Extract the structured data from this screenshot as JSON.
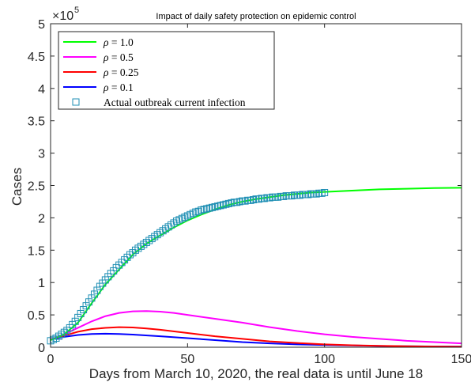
{
  "chart_data": {
    "type": "line",
    "title": "Impact of daily safety protection on epidemic control",
    "xlabel": "Days from March 10, 2020, the real data is until June 18",
    "ylabel": "Cases",
    "y_multiplier_label": "×10",
    "y_multiplier_exponent": "5",
    "xlim": [
      0,
      150
    ],
    "ylim": [
      0,
      5
    ],
    "x_ticks": [
      "0",
      "50",
      "100",
      "150"
    ],
    "y_ticks": [
      "0",
      "0.5",
      "1",
      "1.5",
      "2",
      "2.5",
      "3",
      "3.5",
      "4",
      "4.5",
      "5"
    ],
    "grid": false,
    "legend_position": "top-left",
    "legend": [
      {
        "symbol": "ρ",
        "eq": " = 1.0",
        "color": "#00ff00",
        "marker": "line"
      },
      {
        "symbol": "ρ",
        "eq": " = 0.5",
        "color": "#ff00ff",
        "marker": "line"
      },
      {
        "symbol": "ρ",
        "eq": " = 0.25",
        "color": "#ff0000",
        "marker": "line"
      },
      {
        "symbol": "ρ",
        "eq": " = 0.1",
        "color": "#0000ff",
        "marker": "line"
      },
      {
        "symbol": "",
        "eq": "Actual outbreak current infection",
        "color": "#1f8fb4",
        "marker": "square"
      }
    ],
    "series": [
      {
        "name": "ρ = 1.0",
        "color": "#00ff00",
        "x": [
          0,
          5,
          10,
          15,
          20,
          25,
          30,
          35,
          40,
          45,
          50,
          55,
          60,
          65,
          70,
          75,
          80,
          85,
          90,
          95,
          100,
          110,
          120,
          130,
          140,
          150
        ],
        "y": [
          0.11,
          0.2,
          0.38,
          0.68,
          0.97,
          1.2,
          1.43,
          1.6,
          1.73,
          1.85,
          1.96,
          2.05,
          2.13,
          2.2,
          2.25,
          2.29,
          2.32,
          2.35,
          2.37,
          2.39,
          2.4,
          2.42,
          2.44,
          2.45,
          2.46,
          2.465
        ]
      },
      {
        "name": "ρ = 0.5",
        "color": "#ff00ff",
        "x": [
          0,
          5,
          10,
          15,
          20,
          25,
          30,
          35,
          40,
          45,
          50,
          60,
          70,
          80,
          90,
          100,
          110,
          120,
          130,
          140,
          150
        ],
        "y": [
          0.12,
          0.2,
          0.3,
          0.4,
          0.48,
          0.53,
          0.555,
          0.56,
          0.55,
          0.53,
          0.5,
          0.44,
          0.38,
          0.31,
          0.25,
          0.2,
          0.16,
          0.13,
          0.1,
          0.08,
          0.06
        ]
      },
      {
        "name": "ρ = 0.25",
        "color": "#ff0000",
        "x": [
          0,
          5,
          10,
          15,
          20,
          25,
          30,
          35,
          40,
          50,
          60,
          70,
          80,
          90,
          100,
          110,
          120,
          130,
          140,
          150
        ],
        "y": [
          0.12,
          0.18,
          0.24,
          0.28,
          0.3,
          0.31,
          0.305,
          0.29,
          0.27,
          0.22,
          0.17,
          0.13,
          0.09,
          0.065,
          0.045,
          0.03,
          0.022,
          0.015,
          0.01,
          0.007
        ]
      },
      {
        "name": "ρ = 0.1",
        "color": "#0000ff",
        "x": [
          0,
          5,
          10,
          15,
          20,
          25,
          30,
          40,
          50,
          60,
          70,
          80,
          90,
          100,
          110,
          120,
          130,
          140,
          150
        ],
        "y": [
          0.12,
          0.16,
          0.19,
          0.205,
          0.21,
          0.205,
          0.195,
          0.17,
          0.14,
          0.11,
          0.08,
          0.06,
          0.045,
          0.035,
          0.028,
          0.02,
          0.015,
          0.012,
          0.01
        ]
      },
      {
        "name": "Actual outbreak current infection",
        "color": "#1f8fb4",
        "marker": "square",
        "x": [
          0,
          1,
          2,
          3,
          4,
          5,
          6,
          7,
          8,
          9,
          10,
          11,
          12,
          13,
          14,
          15,
          16,
          17,
          18,
          19,
          20,
          21,
          22,
          23,
          24,
          25,
          26,
          27,
          28,
          29,
          30,
          31,
          32,
          33,
          34,
          35,
          36,
          37,
          38,
          39,
          40,
          41,
          42,
          43,
          44,
          45,
          46,
          47,
          48,
          49,
          50,
          51,
          52,
          53,
          54,
          55,
          56,
          57,
          58,
          59,
          60,
          61,
          62,
          63,
          64,
          65,
          66,
          67,
          68,
          69,
          70,
          71,
          72,
          73,
          74,
          75,
          76,
          77,
          78,
          79,
          80,
          81,
          82,
          83,
          84,
          85,
          86,
          87,
          88,
          89,
          90,
          91,
          92,
          93,
          94,
          95,
          96,
          97,
          98,
          99,
          100
        ],
        "y": [
          0.1,
          0.12,
          0.14,
          0.17,
          0.2,
          0.23,
          0.26,
          0.3,
          0.35,
          0.4,
          0.46,
          0.52,
          0.58,
          0.64,
          0.7,
          0.76,
          0.82,
          0.88,
          0.94,
          0.99,
          1.04,
          1.09,
          1.14,
          1.18,
          1.23,
          1.27,
          1.31,
          1.35,
          1.39,
          1.43,
          1.46,
          1.5,
          1.53,
          1.56,
          1.59,
          1.62,
          1.65,
          1.68,
          1.71,
          1.74,
          1.77,
          1.8,
          1.83,
          1.86,
          1.89,
          1.92,
          1.95,
          1.97,
          1.99,
          2.01,
          2.03,
          2.05,
          2.07,
          2.09,
          2.1,
          2.12,
          2.13,
          2.14,
          2.15,
          2.16,
          2.17,
          2.18,
          2.19,
          2.2,
          2.21,
          2.22,
          2.23,
          2.24,
          2.24,
          2.25,
          2.26,
          2.26,
          2.27,
          2.27,
          2.28,
          2.29,
          2.29,
          2.3,
          2.3,
          2.31,
          2.31,
          2.32,
          2.32,
          2.32,
          2.33,
          2.33,
          2.34,
          2.34,
          2.34,
          2.35,
          2.35,
          2.35,
          2.36,
          2.36,
          2.36,
          2.37,
          2.37,
          2.37,
          2.38,
          2.38,
          2.39
        ]
      }
    ]
  }
}
